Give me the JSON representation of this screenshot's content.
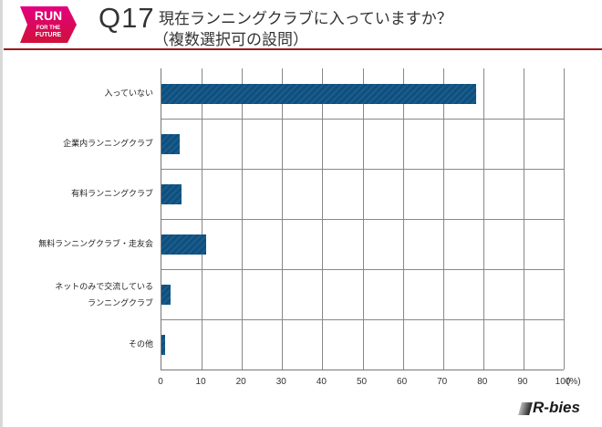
{
  "header": {
    "logo": {
      "line1": "RUN",
      "line2": "FOR THE",
      "line3": "FUTURE",
      "bg": "#d0103a",
      "accent": "#e4007f"
    },
    "question_number": "Q17",
    "title_line1": "現在ランニングクラブに入っていますか？",
    "title_line2": "（複数選択可の設問）",
    "rule_color": "#9a1b1f"
  },
  "footer": {
    "brand": "R-bies"
  },
  "chart_data": {
    "type": "bar",
    "orientation": "horizontal",
    "title": "現在ランニングクラブに入っていますか？（複数選択可の設問）",
    "categories": [
      "入っていない",
      "企業内ランニングクラブ",
      "有料ランニングクラブ",
      "無料ランニングクラブ・走友会",
      "ネットのみで交流している ランニングクラブ",
      "その他"
    ],
    "category_lines": [
      [
        "入っていない"
      ],
      [
        "企業内ランニングクラブ"
      ],
      [
        "有料ランニングクラブ"
      ],
      [
        "無料ランニングクラブ・走友会"
      ],
      [
        "ネットのみで交流している",
        "ランニングクラブ"
      ],
      [
        "その他"
      ]
    ],
    "values": [
      78.2,
      4.5,
      5.0,
      11.1,
      2.3,
      0.9
    ],
    "xlabel": "(%)",
    "ylabel": "",
    "xlim": [
      0,
      100
    ],
    "xticks": [
      "0",
      "10",
      "20",
      "30",
      "40",
      "50",
      "60",
      "70",
      "80",
      "90",
      "100"
    ],
    "grid": true,
    "bar_color": "#0d5080",
    "legend": null
  }
}
